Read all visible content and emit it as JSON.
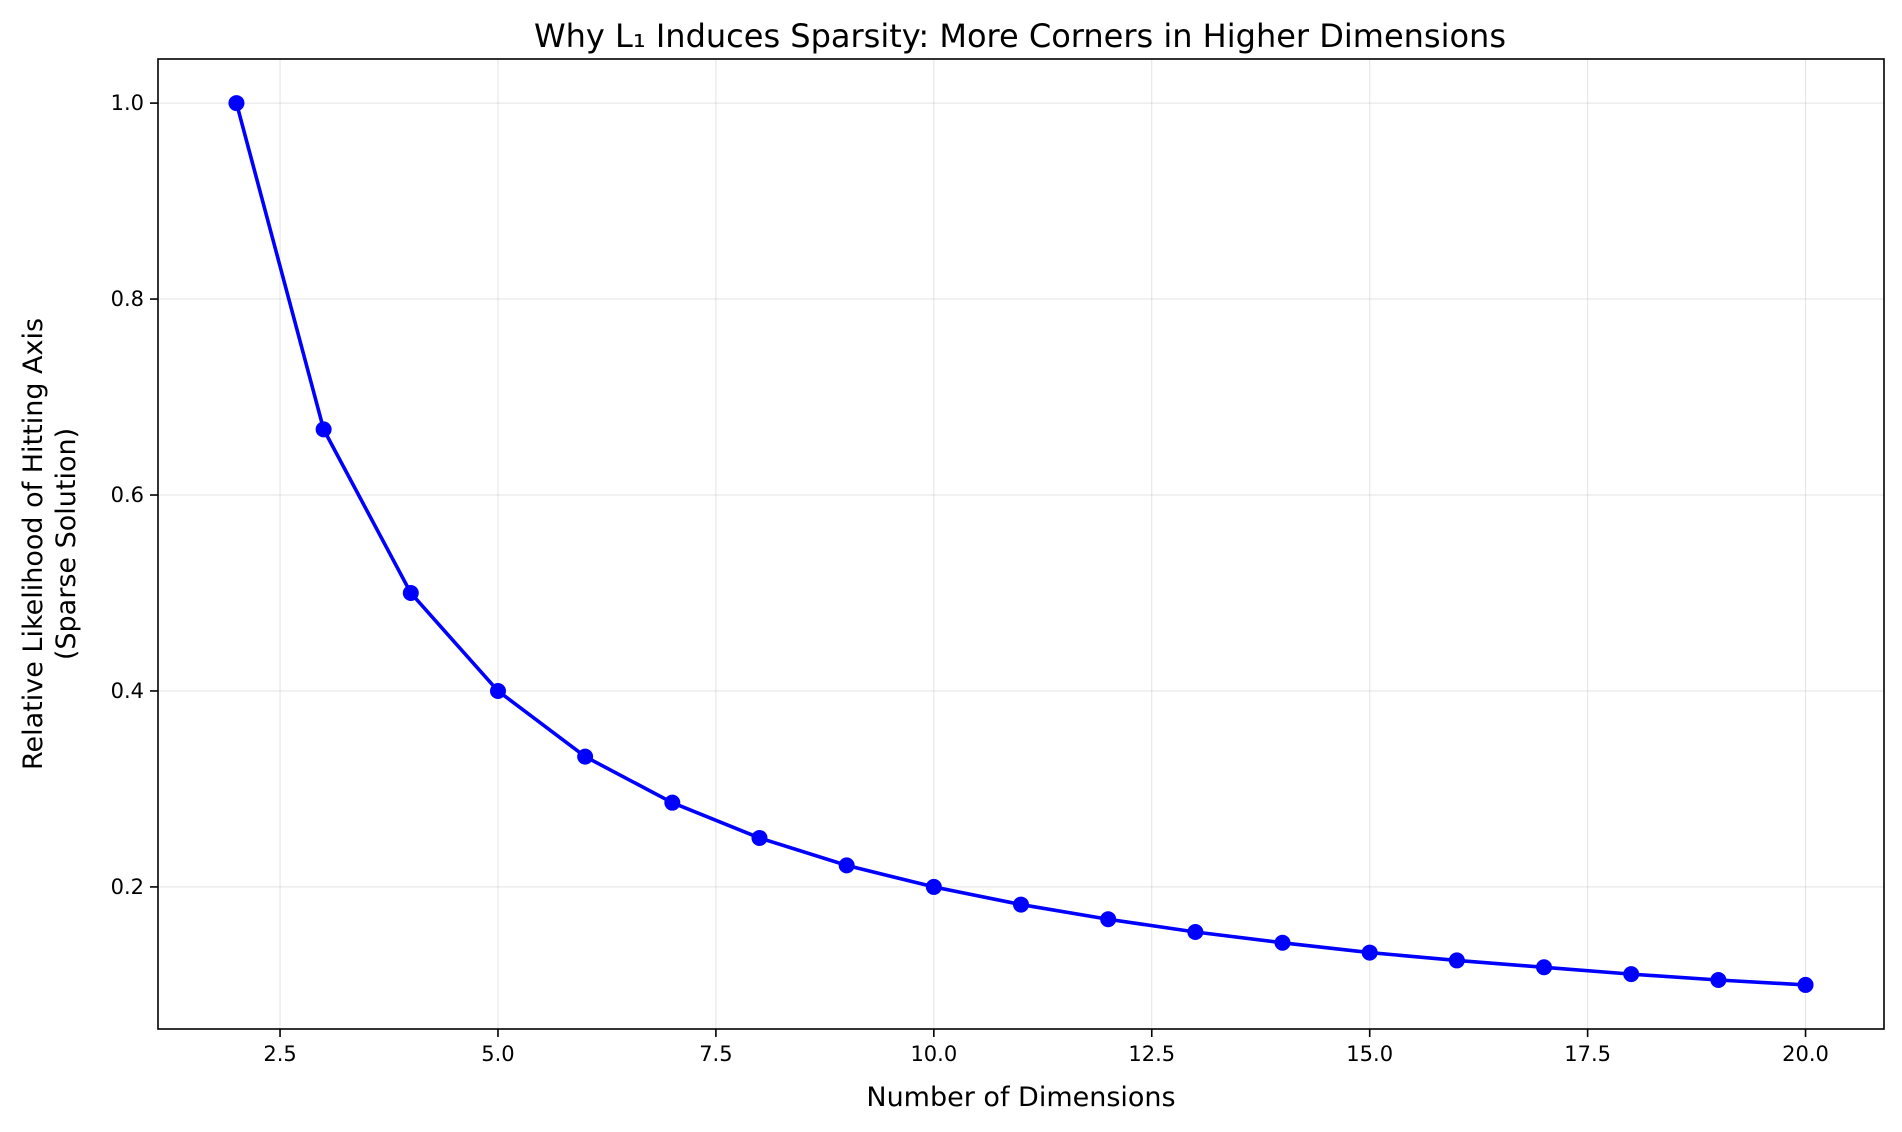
{
  "chart_data": {
    "type": "line",
    "title": "Why L₁ Induces Sparsity: More Corners in Higher Dimensions",
    "xlabel": "Number of Dimensions",
    "ylabel_lines": [
      "Relative Likelihood of Hitting Axis",
      "(Sparse Solution)"
    ],
    "xlim": [
      1.1,
      20.9
    ],
    "ylim": [
      0.055,
      1.045
    ],
    "xticks": [
      2.5,
      5.0,
      7.5,
      10.0,
      12.5,
      15.0,
      17.5,
      20.0
    ],
    "xtick_labels": [
      "2.5",
      "5.0",
      "7.5",
      "10.0",
      "12.5",
      "15.0",
      "17.5",
      "20.0"
    ],
    "yticks": [
      0.2,
      0.4,
      0.6,
      0.8,
      1.0
    ],
    "ytick_labels": [
      "0.2",
      "0.4",
      "0.6",
      "0.8",
      "1.0"
    ],
    "grid": true,
    "series": [
      {
        "color": "#0000ff",
        "marker": "circle",
        "x": [
          2,
          3,
          4,
          5,
          6,
          7,
          8,
          9,
          10,
          11,
          12,
          13,
          14,
          15,
          16,
          17,
          18,
          19,
          20
        ],
        "y": [
          1.0,
          0.667,
          0.5,
          0.4,
          0.333,
          0.286,
          0.25,
          0.222,
          0.2,
          0.182,
          0.167,
          0.154,
          0.143,
          0.133,
          0.125,
          0.118,
          0.111,
          0.105,
          0.1
        ]
      }
    ]
  }
}
